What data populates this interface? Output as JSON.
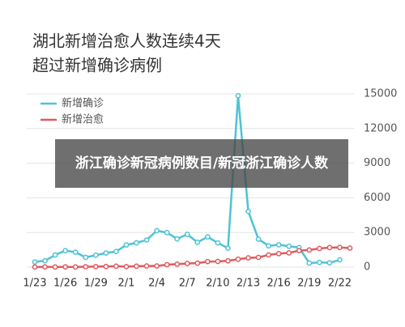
{
  "chart_data": {
    "type": "line",
    "title": [
      "湖北新增治愈人数连续4天",
      "超过新增确诊病例"
    ],
    "caption": "浙江确诊新冠病例数目/新冠浙江确诊人数",
    "categories": [
      "1/23",
      null,
      null,
      "1/26",
      null,
      null,
      "1/29",
      null,
      null,
      "2/1",
      null,
      null,
      "2/4",
      null,
      null,
      "2/7",
      null,
      null,
      "2/10",
      null,
      null,
      "2/13",
      null,
      null,
      "2/16",
      null,
      null,
      "2/19",
      null,
      null,
      "2/22",
      null
    ],
    "series": [
      {
        "name": "新增确诊",
        "color": "#4ec3d3",
        "values": [
          444,
          549,
          1052,
          1423,
          1291,
          840,
          1032,
          1220,
          1347,
          1921,
          2103,
          2345,
          3156,
          2987,
          2447,
          2841,
          2147,
          2618,
          2097,
          1638,
          14840,
          4823,
          2420,
          1843,
          1933,
          1807,
          1693,
          349,
          411,
          366,
          630,
          null
        ]
      },
      {
        "name": "新增治愈",
        "color": "#e05a5f",
        "values": [
          6,
          15,
          8,
          19,
          12,
          32,
          47,
          53,
          80,
          45,
          78,
          100,
          101,
          209,
          257,
          314,
          342,
          478,
          490,
          542,
          682,
          800,
          841,
          1057,
          1168,
          1233,
          1427,
          1483,
          1611,
          1693,
          1700,
          1650
        ]
      }
    ],
    "ylim": [
      0,
      15000
    ],
    "yticks": [
      0,
      3000,
      6000,
      9000,
      12000,
      15000
    ],
    "grid": true,
    "legend": "top-left"
  }
}
